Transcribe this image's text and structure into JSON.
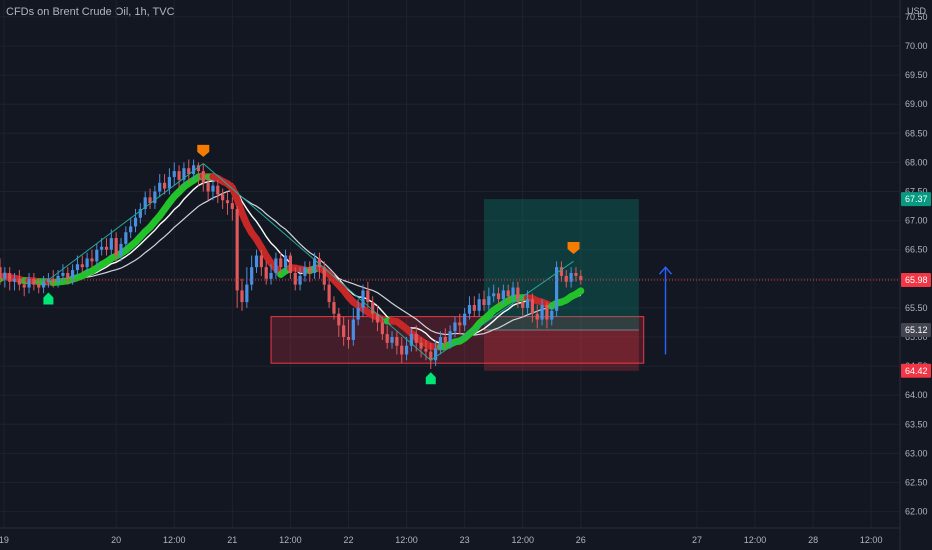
{
  "chart_data": {
    "type": "candlestick",
    "title": "CFDs on Brent Crude Oil, 1h, TVC",
    "currency": "USD",
    "ylim": [
      61.9,
      70.6
    ],
    "y_ticks": [
      "62.00",
      "62.50",
      "63.00",
      "63.50",
      "64.00",
      "64.50",
      "65.00",
      "65.50",
      "66.00",
      "66.50",
      "67.00",
      "67.50",
      "68.00",
      "68.50",
      "69.00",
      "69.50",
      "70.00",
      "70.50"
    ],
    "x_ticks": [
      {
        "label": "19",
        "t": 0.8
      },
      {
        "label": "20",
        "t": 24
      },
      {
        "label": "12:00",
        "t": 36
      },
      {
        "label": "21",
        "t": 48
      },
      {
        "label": "12:00",
        "t": 60
      },
      {
        "label": "22",
        "t": 72
      },
      {
        "label": "12:00",
        "t": 84
      },
      {
        "label": "23",
        "t": 96
      },
      {
        "label": "12:00",
        "t": 108
      },
      {
        "label": "26",
        "t": 120
      },
      {
        "label": "27",
        "t": 144
      },
      {
        "label": "12:00",
        "t": 156
      },
      {
        "label": "28",
        "t": 168
      },
      {
        "label": "12:00",
        "t": 180
      }
    ],
    "price_labels": [
      {
        "value": "67.37",
        "y": 67.37,
        "color": "#089981"
      },
      {
        "value": "65.98",
        "y": 65.98,
        "color": "#f23645"
      },
      {
        "value": "65.12",
        "y": 65.12,
        "color": "#434651"
      },
      {
        "value": "64.42",
        "y": 64.42,
        "color": "#f23645"
      }
    ],
    "current_price": 65.98,
    "long_position": {
      "t_start": 100,
      "t_end": 132,
      "entry": 65.12,
      "target": 67.37,
      "stop": 64.42
    },
    "demand_zone": {
      "t_start": 56,
      "t_end": 133,
      "top": 65.35,
      "bottom": 64.55
    },
    "markers": [
      {
        "t": 10,
        "price": 65.73,
        "color": "#00e676",
        "dir": "up"
      },
      {
        "t": 42,
        "price": 68.13,
        "color": "#f57c00",
        "dir": "down"
      },
      {
        "t": 89,
        "price": 64.36,
        "color": "#00e676",
        "dir": "up"
      },
      {
        "t": 118.5,
        "price": 66.46,
        "color": "#f57c00",
        "dir": "down"
      }
    ],
    "zigzag": [
      [
        10,
        65.98
      ],
      [
        42,
        67.98
      ],
      [
        89,
        64.6
      ],
      [
        118.5,
        66.3
      ]
    ],
    "arrow": {
      "t": 137.5,
      "from": 64.7,
      "to": 66.2
    },
    "candles": [
      [
        0,
        66.2,
        66.0,
        66.35,
        65.9
      ],
      [
        1,
        66.0,
        66.1,
        66.2,
        65.85
      ],
      [
        2,
        66.1,
        65.95,
        66.2,
        65.8
      ],
      [
        3,
        65.95,
        66.0,
        66.1,
        65.8
      ],
      [
        4,
        66.0,
        65.9,
        66.15,
        65.8
      ],
      [
        5,
        65.9,
        65.85,
        66.0,
        65.7
      ],
      [
        6,
        65.85,
        66.0,
        66.1,
        65.75
      ],
      [
        7,
        66.0,
        65.9,
        66.1,
        65.8
      ],
      [
        8,
        65.9,
        65.85,
        66.0,
        65.75
      ],
      [
        9,
        65.85,
        65.95,
        66.05,
        65.75
      ],
      [
        10,
        65.95,
        66.0,
        66.1,
        65.85
      ],
      [
        11,
        66.0,
        65.95,
        66.15,
        65.85
      ],
      [
        12,
        65.95,
        66.05,
        66.15,
        65.85
      ],
      [
        13,
        66.05,
        66.1,
        66.25,
        65.95
      ],
      [
        14,
        66.1,
        66.0,
        66.2,
        65.9
      ],
      [
        15,
        66.0,
        66.15,
        66.25,
        65.9
      ],
      [
        16,
        66.15,
        66.25,
        66.4,
        66.05
      ],
      [
        17,
        66.25,
        66.2,
        66.4,
        66.1
      ],
      [
        18,
        66.2,
        66.35,
        66.45,
        66.1
      ],
      [
        19,
        66.35,
        66.3,
        66.5,
        66.2
      ],
      [
        20,
        66.3,
        66.5,
        66.6,
        66.2
      ],
      [
        21,
        66.5,
        66.55,
        66.7,
        66.4
      ],
      [
        22,
        66.55,
        66.5,
        66.7,
        66.4
      ],
      [
        23,
        66.5,
        66.7,
        66.85,
        66.4
      ],
      [
        24,
        66.7,
        66.4,
        66.8,
        66.3
      ],
      [
        25,
        66.4,
        66.6,
        66.7,
        66.3
      ],
      [
        26,
        66.6,
        66.8,
        66.9,
        66.5
      ],
      [
        27,
        66.8,
        66.9,
        67.05,
        66.7
      ],
      [
        28,
        66.9,
        67.05,
        67.2,
        66.8
      ],
      [
        29,
        67.05,
        67.2,
        67.3,
        66.95
      ],
      [
        30,
        67.2,
        67.4,
        67.5,
        67.1
      ],
      [
        31,
        67.4,
        67.3,
        67.55,
        67.2
      ],
      [
        32,
        67.3,
        67.5,
        67.6,
        67.2
      ],
      [
        33,
        67.5,
        67.65,
        67.8,
        67.4
      ],
      [
        34,
        67.65,
        67.55,
        67.8,
        67.45
      ],
      [
        35,
        67.55,
        67.75,
        67.9,
        67.45
      ],
      [
        36,
        67.75,
        67.85,
        68.0,
        67.6
      ],
      [
        37,
        67.85,
        67.7,
        67.95,
        67.55
      ],
      [
        38,
        67.7,
        67.9,
        68.0,
        67.6
      ],
      [
        39,
        67.9,
        67.8,
        68.05,
        67.65
      ],
      [
        40,
        67.8,
        67.95,
        68.05,
        67.7
      ],
      [
        41,
        67.95,
        67.85,
        68.0,
        67.6
      ],
      [
        42,
        67.85,
        67.65,
        67.98,
        67.5
      ],
      [
        43,
        67.65,
        67.5,
        67.8,
        67.35
      ],
      [
        44,
        67.5,
        67.6,
        67.7,
        67.35
      ],
      [
        45,
        67.6,
        67.45,
        67.7,
        67.3
      ],
      [
        46,
        67.45,
        67.35,
        67.55,
        67.2
      ],
      [
        47,
        67.35,
        67.3,
        67.5,
        67.1
      ],
      [
        48,
        67.3,
        67.2,
        67.4,
        67.0
      ],
      [
        49,
        67.2,
        65.8,
        67.25,
        65.5
      ],
      [
        50,
        65.8,
        65.6,
        66.0,
        65.45
      ],
      [
        51,
        65.6,
        65.9,
        66.2,
        65.5
      ],
      [
        52,
        65.9,
        66.2,
        66.4,
        65.8
      ],
      [
        53,
        66.2,
        66.4,
        66.5,
        66.1
      ],
      [
        54,
        66.4,
        66.2,
        66.5,
        66.05
      ],
      [
        55,
        66.2,
        66.0,
        66.3,
        65.9
      ],
      [
        56,
        66.0,
        66.1,
        66.25,
        65.9
      ],
      [
        57,
        66.1,
        66.35,
        66.45,
        66.0
      ],
      [
        58,
        66.35,
        66.2,
        66.45,
        66.1
      ],
      [
        59,
        66.2,
        66.4,
        66.5,
        66.1
      ],
      [
        60,
        66.4,
        66.1,
        66.45,
        66.0
      ],
      [
        61,
        66.1,
        65.9,
        66.2,
        65.8
      ],
      [
        62,
        65.9,
        66.05,
        66.2,
        65.8
      ],
      [
        63,
        66.05,
        66.2,
        66.3,
        65.95
      ],
      [
        64,
        66.2,
        66.1,
        66.3,
        65.95
      ],
      [
        65,
        66.1,
        66.35,
        66.45,
        66.0
      ],
      [
        66,
        66.35,
        66.2,
        66.45,
        66.0
      ],
      [
        67,
        66.2,
        65.9,
        66.3,
        65.8
      ],
      [
        68,
        65.9,
        65.6,
        66.0,
        65.5
      ],
      [
        69,
        65.6,
        65.4,
        65.7,
        65.3
      ],
      [
        70,
        65.4,
        65.2,
        65.5,
        65.0
      ],
      [
        71,
        65.2,
        65.0,
        65.35,
        64.85
      ],
      [
        72,
        65.0,
        64.95,
        65.3,
        64.8
      ],
      [
        73,
        64.95,
        65.3,
        65.5,
        64.85
      ],
      [
        74,
        65.3,
        65.5,
        65.65,
        65.2
      ],
      [
        75,
        65.5,
        65.8,
        65.9,
        65.35
      ],
      [
        76,
        65.8,
        65.6,
        65.95,
        65.5
      ],
      [
        77,
        65.6,
        65.4,
        65.7,
        65.25
      ],
      [
        78,
        65.4,
        65.25,
        65.55,
        65.1
      ],
      [
        79,
        65.25,
        65.05,
        65.35,
        64.95
      ],
      [
        80,
        65.05,
        64.9,
        65.2,
        64.8
      ],
      [
        81,
        64.9,
        65.0,
        65.1,
        64.8
      ],
      [
        82,
        65.0,
        64.85,
        65.1,
        64.7
      ],
      [
        83,
        64.85,
        64.7,
        65.0,
        64.55
      ],
      [
        84,
        64.7,
        64.85,
        65.0,
        64.6
      ],
      [
        85,
        64.85,
        65.05,
        65.15,
        64.75
      ],
      [
        86,
        65.05,
        64.9,
        65.2,
        64.75
      ],
      [
        87,
        64.9,
        64.8,
        65.0,
        64.65
      ],
      [
        88,
        64.8,
        64.75,
        64.95,
        64.6
      ],
      [
        89,
        64.75,
        64.6,
        64.9,
        64.45
      ],
      [
        90,
        64.6,
        64.8,
        64.95,
        64.5
      ],
      [
        91,
        64.8,
        65.0,
        65.1,
        64.7
      ],
      [
        92,
        65.0,
        64.9,
        65.15,
        64.8
      ],
      [
        93,
        64.9,
        65.1,
        65.2,
        64.8
      ],
      [
        94,
        65.1,
        65.25,
        65.35,
        65.0
      ],
      [
        95,
        65.25,
        65.2,
        65.4,
        65.05
      ],
      [
        96,
        65.2,
        65.4,
        65.5,
        65.1
      ],
      [
        97,
        65.4,
        65.55,
        65.7,
        65.3
      ],
      [
        98,
        65.55,
        65.45,
        65.7,
        65.35
      ],
      [
        99,
        65.45,
        65.65,
        65.75,
        65.35
      ],
      [
        100,
        65.65,
        65.55,
        65.8,
        65.45
      ],
      [
        101,
        65.55,
        65.7,
        65.85,
        65.45
      ],
      [
        102,
        65.7,
        65.75,
        65.9,
        65.6
      ],
      [
        103,
        65.75,
        65.65,
        65.85,
        65.55
      ],
      [
        104,
        65.65,
        65.8,
        65.9,
        65.55
      ],
      [
        105,
        65.8,
        65.7,
        65.9,
        65.6
      ],
      [
        106,
        65.7,
        65.85,
        65.95,
        65.6
      ],
      [
        107,
        65.85,
        65.6,
        65.95,
        65.5
      ],
      [
        108,
        65.6,
        65.5,
        65.7,
        65.35
      ],
      [
        109,
        65.5,
        65.65,
        65.8,
        65.4
      ],
      [
        110,
        65.65,
        65.4,
        65.75,
        65.25
      ],
      [
        111,
        65.4,
        65.3,
        65.55,
        65.15
      ],
      [
        112,
        65.3,
        65.55,
        65.65,
        65.2
      ],
      [
        113,
        65.55,
        65.3,
        65.6,
        65.15
      ],
      [
        114,
        65.3,
        65.45,
        65.55,
        65.2
      ],
      [
        115,
        65.45,
        66.2,
        66.3,
        65.35
      ],
      [
        116,
        66.2,
        66.05,
        66.3,
        65.95
      ],
      [
        117,
        66.05,
        65.95,
        66.15,
        65.85
      ],
      [
        118,
        65.95,
        66.1,
        66.2,
        65.85
      ],
      [
        119,
        66.1,
        66.05,
        66.2,
        65.95
      ],
      [
        120,
        66.05,
        65.98,
        66.15,
        65.9
      ]
    ]
  }
}
